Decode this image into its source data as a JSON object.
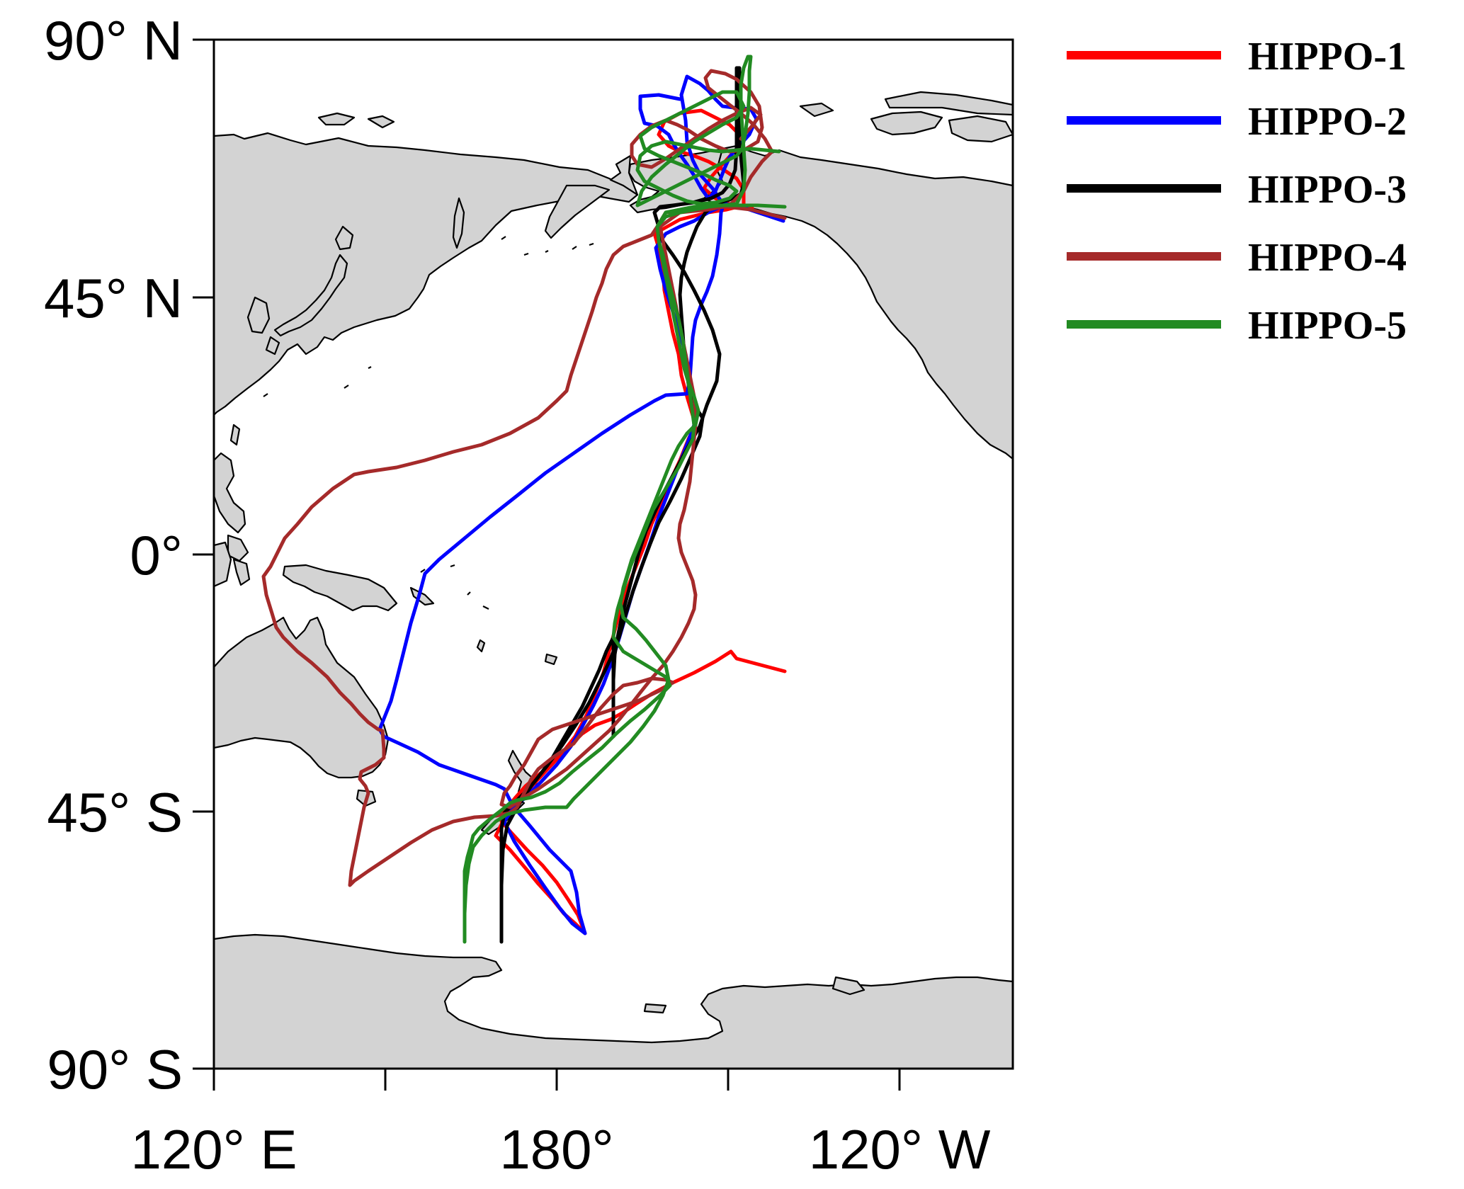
{
  "map": {
    "lat_labels": [
      "90° N",
      "45° N",
      "0°",
      "45° S",
      "90° S"
    ],
    "lon_labels": [
      "120° E",
      "180°",
      "120° W"
    ]
  },
  "legend": [
    {
      "name": "HIPPO-1",
      "color": "#ff0000"
    },
    {
      "name": "HIPPO-2",
      "color": "#0000ff"
    },
    {
      "name": "HIPPO-3",
      "color": "#000000"
    },
    {
      "name": "HIPPO-4",
      "color": "#a52a2a"
    },
    {
      "name": "HIPPO-5",
      "color": "#228b22"
    }
  ],
  "colors": {
    "land": "#d3d3d3",
    "ocean": "#ffffff",
    "frame": "#000000"
  }
}
